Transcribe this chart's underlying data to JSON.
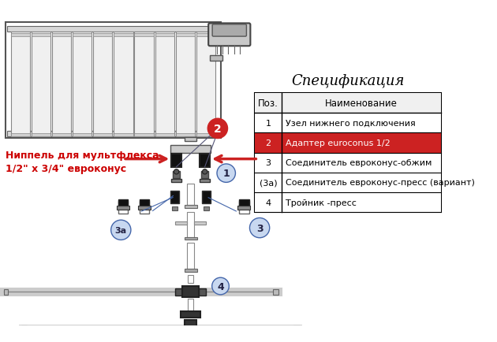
{
  "title": "Спецификация",
  "background_color": "#ffffff",
  "table_header": [
    "Поз.",
    "Наименование"
  ],
  "table_rows": [
    [
      "1",
      "Узел нижнего подключения"
    ],
    [
      "2",
      "Адаптер euroconus 1/2"
    ],
    [
      "3",
      "Соединитель евроконус-обжим"
    ],
    [
      "(3а)",
      "Соединитель евроконус-пресс (вариант)"
    ],
    [
      "4",
      "Тройник -пресс"
    ]
  ],
  "highlight_row": 1,
  "highlight_color": "#cc2222",
  "highlight_text_color": "#ffffff",
  "nipple_label": "Ниппель для мультфлекса\n1/2\" x 3/4\" евроконус",
  "nipple_label_color": "#cc0000",
  "arrow_color": "#cc2222",
  "label_circle_bg": "#c8d8f0",
  "label_circle_border": "#4466aa",
  "label2_circle_color": "#cc2222",
  "figsize": [
    6.3,
    4.35
  ],
  "dpi": 100
}
